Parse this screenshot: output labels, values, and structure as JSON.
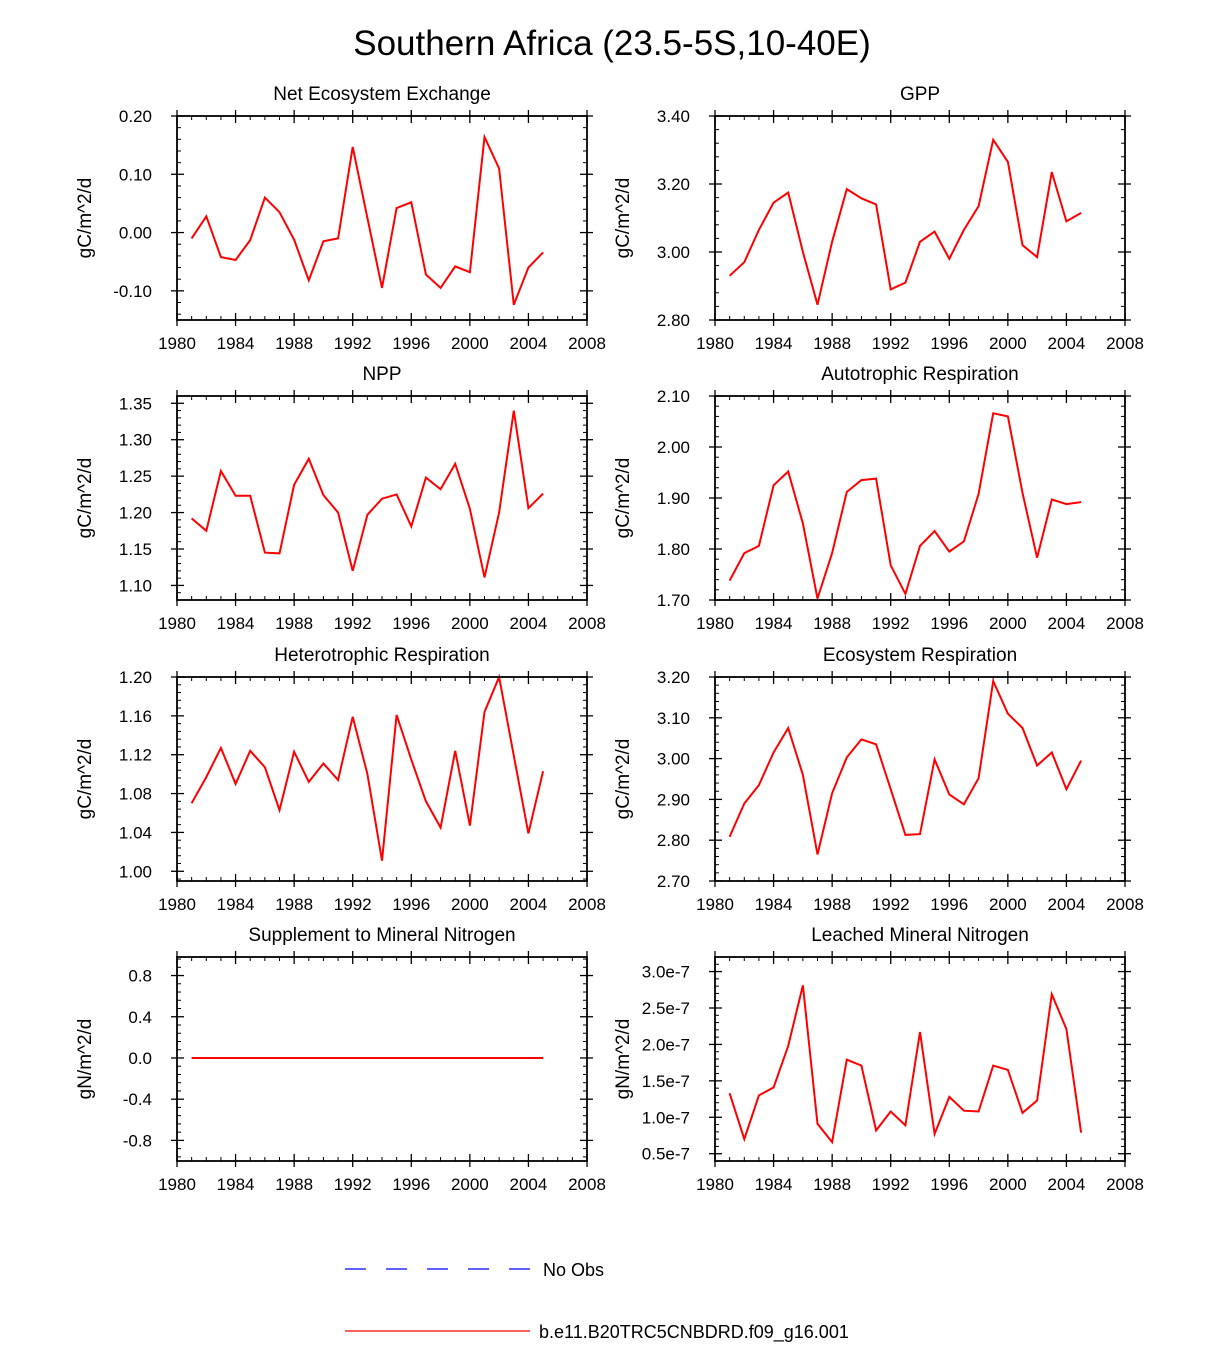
{
  "figure": {
    "title": "Southern Africa (23.5-5S,10-40E)",
    "series_color": "#ff0000",
    "obs_color": "#0000ff",
    "legend": [
      {
        "label": "No Obs",
        "style": "dashed",
        "color": "#0000ff"
      },
      {
        "label": "b.e11.B20TRC5CNBDRD.f09_g16.001",
        "style": "solid",
        "color": "#ff0000"
      }
    ]
  },
  "chart_data": [
    {
      "type": "line",
      "title": "Net Ecosystem Exchange",
      "xlabel": "",
      "ylabel": "gC/m^2/d",
      "xlim": [
        1980,
        2008
      ],
      "ylim": [
        -0.15,
        0.2
      ],
      "xticks": [
        1980,
        1984,
        1988,
        1992,
        1996,
        2000,
        2004,
        2008
      ],
      "xtick_labels": [
        "1980",
        "1984",
        "1988",
        "1992",
        "1996",
        "2000",
        "2004",
        "2008"
      ],
      "yticks": [
        -0.1,
        0.0,
        0.1,
        0.2
      ],
      "ytick_labels": [
        "-0.10",
        "0.00",
        "0.10",
        "0.20"
      ],
      "x": [
        1981,
        1982,
        1983,
        1984,
        1985,
        1986,
        1987,
        1988,
        1989,
        1990,
        1991,
        1992,
        1993,
        1994,
        1995,
        1996,
        1997,
        1998,
        1999,
        2000,
        2001,
        2002,
        2003,
        2004,
        2005
      ],
      "series": [
        {
          "name": "b.e11.B20TRC5CNBDRD.f09_g16.001",
          "values": [
            -0.01,
            0.028,
            -0.042,
            -0.047,
            -0.013,
            0.06,
            0.035,
            -0.012,
            -0.082,
            -0.015,
            -0.01,
            0.147,
            0.025,
            -0.095,
            0.042,
            0.052,
            -0.072,
            -0.095,
            -0.058,
            -0.068,
            0.164,
            0.11,
            -0.124,
            -0.06,
            -0.034
          ]
        }
      ]
    },
    {
      "type": "line",
      "title": "GPP",
      "xlabel": "",
      "ylabel": "gC/m^2/d",
      "xlim": [
        1980,
        2008
      ],
      "ylim": [
        2.8,
        3.4
      ],
      "xticks": [
        1980,
        1984,
        1988,
        1992,
        1996,
        2000,
        2004,
        2008
      ],
      "xtick_labels": [
        "1980",
        "1984",
        "1988",
        "1992",
        "1996",
        "2000",
        "2004",
        "2008"
      ],
      "yticks": [
        2.8,
        3.0,
        3.2,
        3.4
      ],
      "ytick_labels": [
        "2.80",
        "3.00",
        "3.20",
        "3.40"
      ],
      "x": [
        1981,
        1982,
        1983,
        1984,
        1985,
        1986,
        1987,
        1988,
        1989,
        1990,
        1991,
        1992,
        1993,
        1994,
        1995,
        1996,
        1997,
        1998,
        1999,
        2000,
        2001,
        2002,
        2003,
        2004,
        2005
      ],
      "series": [
        {
          "name": "b.e11.B20TRC5CNBDRD.f09_g16.001",
          "values": [
            2.93,
            2.97,
            3.065,
            3.145,
            3.175,
            3.0,
            2.845,
            3.03,
            3.185,
            3.158,
            3.14,
            2.89,
            2.91,
            3.03,
            3.06,
            2.98,
            3.065,
            3.135,
            3.33,
            3.265,
            3.02,
            2.985,
            3.235,
            3.09,
            3.115
          ]
        }
      ]
    },
    {
      "type": "line",
      "title": "NPP",
      "xlabel": "",
      "ylabel": "gC/m^2/d",
      "xlim": [
        1980,
        2008
      ],
      "ylim": [
        1.08,
        1.36
      ],
      "xticks": [
        1980,
        1984,
        1988,
        1992,
        1996,
        2000,
        2004,
        2008
      ],
      "xtick_labels": [
        "1980",
        "1984",
        "1988",
        "1992",
        "1996",
        "2000",
        "2004",
        "2008"
      ],
      "yticks": [
        1.1,
        1.15,
        1.2,
        1.25,
        1.3,
        1.35
      ],
      "ytick_labels": [
        "1.10",
        "1.15",
        "1.20",
        "1.25",
        "1.30",
        "1.35"
      ],
      "x": [
        1981,
        1982,
        1983,
        1984,
        1985,
        1986,
        1987,
        1988,
        1989,
        1990,
        1991,
        1992,
        1993,
        1994,
        1995,
        1996,
        1997,
        1998,
        1999,
        2000,
        2001,
        2002,
        2003,
        2004,
        2005
      ],
      "series": [
        {
          "name": "b.e11.B20TRC5CNBDRD.f09_g16.001",
          "values": [
            1.192,
            1.175,
            1.257,
            1.223,
            1.223,
            1.145,
            1.144,
            1.238,
            1.274,
            1.224,
            1.2,
            1.12,
            1.197,
            1.219,
            1.225,
            1.181,
            1.248,
            1.232,
            1.267,
            1.205,
            1.111,
            1.2,
            1.34,
            1.206,
            1.226
          ]
        }
      ]
    },
    {
      "type": "line",
      "title": "Autotrophic Respiration",
      "xlabel": "",
      "ylabel": "gC/m^2/d",
      "xlim": [
        1980,
        2008
      ],
      "ylim": [
        1.7,
        2.1
      ],
      "xticks": [
        1980,
        1984,
        1988,
        1992,
        1996,
        2000,
        2004,
        2008
      ],
      "xtick_labels": [
        "1980",
        "1984",
        "1988",
        "1992",
        "1996",
        "2000",
        "2004",
        "2008"
      ],
      "yticks": [
        1.7,
        1.8,
        1.9,
        2.0,
        2.1
      ],
      "ytick_labels": [
        "1.70",
        "1.80",
        "1.90",
        "2.00",
        "2.10"
      ],
      "x": [
        1981,
        1982,
        1983,
        1984,
        1985,
        1986,
        1987,
        1988,
        1989,
        1990,
        1991,
        1992,
        1993,
        1994,
        1995,
        1996,
        1997,
        1998,
        1999,
        2000,
        2001,
        2002,
        2003,
        2004,
        2005
      ],
      "series": [
        {
          "name": "b.e11.B20TRC5CNBDRD.f09_g16.001",
          "values": [
            1.738,
            1.792,
            1.806,
            1.925,
            1.952,
            1.85,
            1.703,
            1.792,
            1.912,
            1.935,
            1.938,
            1.768,
            1.712,
            1.806,
            1.835,
            1.795,
            1.815,
            1.908,
            2.066,
            2.06,
            1.91,
            1.783,
            1.897,
            1.888,
            1.892
          ]
        }
      ]
    },
    {
      "type": "line",
      "title": "Heterotrophic Respiration",
      "xlabel": "",
      "ylabel": "gC/m^2/d",
      "xlim": [
        1980,
        2008
      ],
      "ylim": [
        0.99,
        1.2
      ],
      "xticks": [
        1980,
        1984,
        1988,
        1992,
        1996,
        2000,
        2004,
        2008
      ],
      "xtick_labels": [
        "1980",
        "1984",
        "1988",
        "1992",
        "1996",
        "2000",
        "2004",
        "2008"
      ],
      "yticks": [
        1.0,
        1.04,
        1.08,
        1.12,
        1.16,
        1.2
      ],
      "ytick_labels": [
        "1.00",
        "1.04",
        "1.08",
        "1.12",
        "1.16",
        "1.20"
      ],
      "x": [
        1981,
        1982,
        1983,
        1984,
        1985,
        1986,
        1987,
        1988,
        1989,
        1990,
        1991,
        1992,
        1993,
        1994,
        1995,
        1996,
        1997,
        1998,
        1999,
        2000,
        2001,
        2002,
        2003,
        2004,
        2005
      ],
      "series": [
        {
          "name": "b.e11.B20TRC5CNBDRD.f09_g16.001",
          "values": [
            1.07,
            1.097,
            1.127,
            1.09,
            1.124,
            1.107,
            1.063,
            1.123,
            1.092,
            1.111,
            1.094,
            1.159,
            1.1,
            1.011,
            1.161,
            1.115,
            1.072,
            1.045,
            1.124,
            1.047,
            1.164,
            1.2,
            1.119,
            1.039,
            1.103
          ]
        }
      ]
    },
    {
      "type": "line",
      "title": "Ecosystem Respiration",
      "xlabel": "",
      "ylabel": "gC/m^2/d",
      "xlim": [
        1980,
        2008
      ],
      "ylim": [
        2.7,
        3.2
      ],
      "xticks": [
        1980,
        1984,
        1988,
        1992,
        1996,
        2000,
        2004,
        2008
      ],
      "xtick_labels": [
        "1980",
        "1984",
        "1988",
        "1992",
        "1996",
        "2000",
        "2004",
        "2008"
      ],
      "yticks": [
        2.7,
        2.8,
        2.9,
        3.0,
        3.1,
        3.2
      ],
      "ytick_labels": [
        "2.70",
        "2.80",
        "2.90",
        "3.00",
        "3.10",
        "3.20"
      ],
      "x": [
        1981,
        1982,
        1983,
        1984,
        1985,
        1986,
        1987,
        1988,
        1989,
        1990,
        1991,
        1992,
        1993,
        1994,
        1995,
        1996,
        1997,
        1998,
        1999,
        2000,
        2001,
        2002,
        2003,
        2004,
        2005
      ],
      "series": [
        {
          "name": "b.e11.B20TRC5CNBDRD.f09_g16.001",
          "values": [
            2.808,
            2.89,
            2.935,
            3.015,
            3.075,
            2.96,
            2.765,
            2.915,
            3.003,
            3.047,
            3.035,
            2.925,
            2.813,
            2.815,
            2.998,
            2.912,
            2.888,
            2.952,
            3.19,
            3.11,
            3.075,
            2.983,
            3.015,
            2.925,
            2.995
          ]
        }
      ]
    },
    {
      "type": "line",
      "title": "Supplement to Mineral Nitrogen",
      "xlabel": "",
      "ylabel": "gN/m^2/d",
      "xlim": [
        1980,
        2008
      ],
      "ylim": [
        -1.0,
        0.98
      ],
      "xticks": [
        1980,
        1984,
        1988,
        1992,
        1996,
        2000,
        2004,
        2008
      ],
      "xtick_labels": [
        "1980",
        "1984",
        "1988",
        "1992",
        "1996",
        "2000",
        "2004",
        "2008"
      ],
      "yticks": [
        -0.8,
        -0.4,
        0.0,
        0.4,
        0.8
      ],
      "ytick_labels": [
        "-0.8",
        "-0.4",
        "0.0",
        "0.4",
        "0.8"
      ],
      "x": [
        1981,
        1982,
        1983,
        1984,
        1985,
        1986,
        1987,
        1988,
        1989,
        1990,
        1991,
        1992,
        1993,
        1994,
        1995,
        1996,
        1997,
        1998,
        1999,
        2000,
        2001,
        2002,
        2003,
        2004,
        2005
      ],
      "series": [
        {
          "name": "b.e11.B20TRC5CNBDRD.f09_g16.001",
          "values": [
            0,
            0,
            0,
            0,
            0,
            0,
            0,
            0,
            0,
            0,
            0,
            0,
            0,
            0,
            0,
            0,
            0,
            0,
            0,
            0,
            0,
            0,
            0,
            0,
            0
          ]
        }
      ]
    },
    {
      "type": "line",
      "title": "Leached Mineral Nitrogen",
      "xlabel": "",
      "ylabel": "gN/m^2/d",
      "xlim": [
        1980,
        2008
      ],
      "ylim": [
        4e-08,
        3.2e-07
      ],
      "xticks": [
        1980,
        1984,
        1988,
        1992,
        1996,
        2000,
        2004,
        2008
      ],
      "xtick_labels": [
        "1980",
        "1984",
        "1988",
        "1992",
        "1996",
        "2000",
        "2004",
        "2008"
      ],
      "yticks": [
        5e-08,
        1e-07,
        1.5e-07,
        2e-07,
        2.5e-07,
        3e-07
      ],
      "ytick_labels": [
        "0.5e-7",
        "1.0e-7",
        "1.5e-7",
        "2.0e-7",
        "2.5e-7",
        "3.0e-7"
      ],
      "x": [
        1981,
        1982,
        1983,
        1984,
        1985,
        1986,
        1987,
        1988,
        1989,
        1990,
        1991,
        1992,
        1993,
        1994,
        1995,
        1996,
        1997,
        1998,
        1999,
        2000,
        2001,
        2002,
        2003,
        2004,
        2005
      ],
      "series": [
        {
          "name": "b.e11.B20TRC5CNBDRD.f09_g16.001",
          "values": [
            1.33e-07,
            7e-08,
            1.3e-07,
            1.41e-07,
            1.98e-07,
            2.81e-07,
            9.1e-08,
            6.6e-08,
            1.79e-07,
            1.71e-07,
            8.2e-08,
            1.08e-07,
            8.9e-08,
            2.17e-07,
            7.7e-08,
            1.28e-07,
            1.09e-07,
            1.08e-07,
            1.71e-07,
            1.65e-07,
            1.06e-07,
            1.23e-07,
            2.69e-07,
            2.21e-07,
            7.9e-08
          ]
        }
      ]
    }
  ]
}
